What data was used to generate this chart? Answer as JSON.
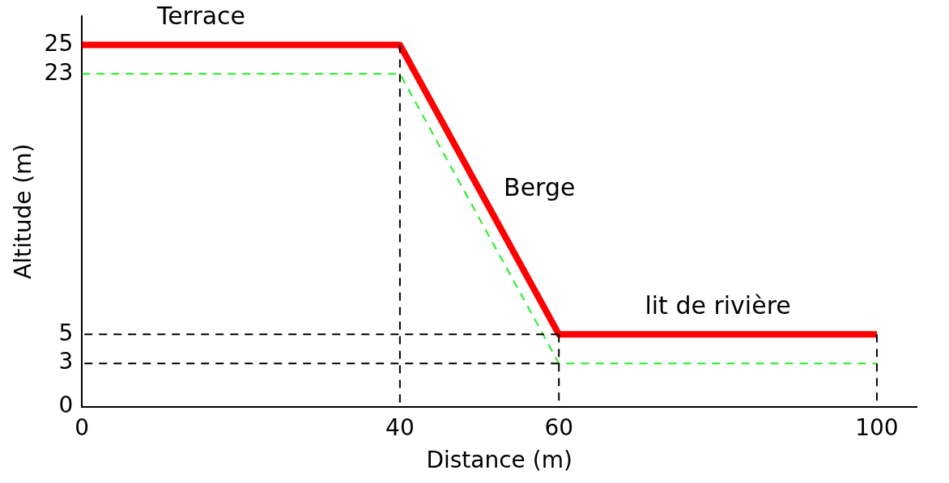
{
  "chart_data": {
    "type": "line",
    "xlabel": "Distance (m)",
    "ylabel": "Altitude (m)",
    "xlim": [
      0,
      105
    ],
    "xticks": [
      0,
      40,
      60,
      100
    ],
    "ylim": [
      0,
      27
    ],
    "yticks": [
      0,
      3,
      5,
      23,
      25
    ],
    "grid": false,
    "legend": false,
    "marker": "none",
    "series": [
      {
        "color": "#ff0000",
        "line_style": "solid",
        "x": [
          0,
          40,
          60,
          100
        ],
        "values": [
          25,
          25,
          5,
          5
        ]
      },
      {
        "color": "#22ee22",
        "line_style": "dashed",
        "x": [
          0,
          40,
          60,
          100
        ],
        "values": [
          23,
          23,
          3,
          3
        ]
      },
      {
        "color": "#000000",
        "line_style": "dashed",
        "x": [
          60,
          0
        ],
        "values": [
          5,
          5
        ]
      },
      {
        "color": "#000000",
        "line_style": "dashed",
        "x": [
          60,
          0
        ],
        "values": [
          3,
          3
        ]
      },
      {
        "color": "#000000",
        "line_style": "dashed",
        "x": [
          40,
          40
        ],
        "values": [
          25,
          0
        ]
      },
      {
        "color": "#000000",
        "line_style": "dashed",
        "x": [
          60,
          60
        ],
        "values": [
          5,
          0
        ]
      },
      {
        "color": "#000000",
        "line_style": "dashed",
        "x": [
          100,
          100
        ],
        "values": [
          5,
          0
        ]
      }
    ],
    "annotations": [
      {
        "text": "Terrace",
        "x": 15,
        "y": 25
      },
      {
        "text": "Berge",
        "x": 50,
        "y": 15
      },
      {
        "text": "lit de rivière",
        "x": 80,
        "y": 5
      }
    ]
  }
}
